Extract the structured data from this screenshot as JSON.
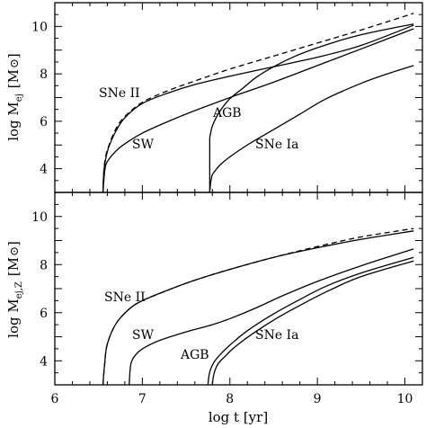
{
  "chart_data": [
    {
      "type": "line",
      "panel": "top",
      "xlabel": "",
      "ylabel": "log M_ej [M_⊙]",
      "xlim": [
        6.0,
        10.2
      ],
      "ylim": [
        3.0,
        11.0
      ],
      "xticks": [
        6,
        7,
        8,
        9,
        10
      ],
      "yticks": [
        4,
        6,
        8,
        10
      ],
      "tick_labels_y": [
        "4",
        "6",
        "8",
        "10"
      ],
      "series": [
        {
          "key": "total",
          "style": "dashed",
          "x": [
            6.55,
            6.56,
            6.58,
            6.62,
            6.7,
            6.8,
            7.0,
            7.3,
            7.6,
            8.0,
            8.5,
            9.0,
            9.5,
            10.1
          ],
          "y": [
            3.0,
            3.9,
            4.5,
            5.0,
            5.7,
            6.2,
            6.8,
            7.3,
            7.7,
            8.2,
            8.75,
            9.3,
            9.85,
            10.55
          ]
        },
        {
          "key": "sne_ii",
          "label": "SNe II",
          "x": [
            6.55,
            6.56,
            6.58,
            6.62,
            6.7,
            6.8,
            7.0,
            7.3,
            7.6,
            8.0,
            8.5,
            9.0,
            9.5,
            10.1
          ],
          "y": [
            3.0,
            3.85,
            4.4,
            4.95,
            5.6,
            6.15,
            6.75,
            7.2,
            7.55,
            7.9,
            8.3,
            8.7,
            9.2,
            10.05
          ]
        },
        {
          "key": "sw",
          "label": "SW",
          "x": [
            6.55,
            6.57,
            6.6,
            6.7,
            6.8,
            7.0,
            7.3,
            7.6,
            8.0,
            8.5,
            9.0,
            9.5,
            10.1
          ],
          "y": [
            3.0,
            3.9,
            4.3,
            4.75,
            5.05,
            5.5,
            6.0,
            6.45,
            7.0,
            7.65,
            8.35,
            9.05,
            9.9
          ]
        },
        {
          "key": "agb",
          "label": "AGB",
          "x": [
            7.77,
            7.78,
            7.8,
            7.85,
            7.9,
            8.0,
            8.15,
            8.3,
            8.5,
            8.75,
            9.0,
            9.25,
            9.5,
            9.75,
            10.1
          ],
          "y": [
            5.3,
            5.5,
            5.8,
            6.2,
            6.5,
            6.95,
            7.4,
            7.85,
            8.3,
            8.75,
            9.1,
            9.4,
            9.65,
            9.85,
            10.1
          ]
        },
        {
          "key": "sne_ia",
          "label": "SNe Ia",
          "x": [
            7.77,
            7.78,
            7.79,
            7.8,
            7.85,
            7.9,
            8.0,
            8.2,
            8.5,
            8.8,
            9.1,
            9.5,
            9.8,
            10.1
          ],
          "y": [
            3.0,
            3.4,
            3.6,
            3.75,
            4.0,
            4.2,
            4.5,
            5.0,
            5.65,
            6.3,
            6.95,
            7.6,
            8.0,
            8.35
          ]
        },
        {
          "key": "agb_drop",
          "style": "solid",
          "x": [
            7.77,
            7.77
          ],
          "y": [
            3.0,
            5.3
          ]
        }
      ]
    },
    {
      "type": "line",
      "panel": "bottom",
      "xlabel": "log t [yr]",
      "ylabel": "log M_ej,Z [M_⊙]",
      "xlim": [
        6.0,
        10.2
      ],
      "ylim": [
        3.0,
        11.0
      ],
      "xticks": [
        6,
        7,
        8,
        9,
        10
      ],
      "yticks": [
        4,
        6,
        8,
        10
      ],
      "tick_labels_x": [
        "6",
        "7",
        "8",
        "9",
        "10"
      ],
      "tick_labels_y": [
        "4",
        "6",
        "8",
        "10"
      ],
      "series": [
        {
          "key": "total",
          "style": "dashed",
          "x": [
            6.55,
            6.57,
            6.6,
            6.7,
            6.85,
            7.0,
            7.3,
            7.6,
            8.0,
            8.5,
            9.0,
            9.5,
            10.1
          ],
          "y": [
            3.0,
            3.9,
            4.7,
            5.55,
            6.15,
            6.5,
            6.95,
            7.35,
            7.8,
            8.3,
            8.75,
            9.15,
            9.5
          ]
        },
        {
          "key": "sne_ii",
          "label": "SNe II",
          "x": [
            6.55,
            6.57,
            6.6,
            6.7,
            6.85,
            7.0,
            7.3,
            7.6,
            8.0,
            8.5,
            9.0,
            9.5,
            10.1
          ],
          "y": [
            3.0,
            3.9,
            4.7,
            5.55,
            6.15,
            6.5,
            6.95,
            7.35,
            7.8,
            8.3,
            8.7,
            9.05,
            9.4
          ]
        },
        {
          "key": "sw",
          "label": "SW",
          "x": [
            6.85,
            6.86,
            6.88,
            6.95,
            7.05,
            7.2,
            7.5,
            7.8,
            8.0,
            8.3,
            8.6,
            9.0,
            9.5,
            10.1
          ],
          "y": [
            3.0,
            3.6,
            4.0,
            4.35,
            4.6,
            4.85,
            5.2,
            5.5,
            5.75,
            6.2,
            6.7,
            7.3,
            7.95,
            8.65
          ]
        },
        {
          "key": "agb",
          "label": "AGB",
          "x": [
            7.75,
            7.76,
            7.78,
            7.82,
            7.9,
            8.0,
            8.2,
            8.5,
            8.8,
            9.1,
            9.5,
            10.1
          ],
          "y": [
            3.0,
            3.35,
            3.65,
            3.95,
            4.3,
            4.65,
            5.25,
            5.95,
            6.55,
            7.1,
            7.65,
            8.3
          ]
        },
        {
          "key": "sne_ia",
          "label": "SNe Ia",
          "x": [
            7.8,
            7.81,
            7.83,
            7.87,
            7.95,
            8.05,
            8.25,
            8.55,
            8.85,
            9.15,
            9.5,
            10.1
          ],
          "y": [
            3.0,
            3.3,
            3.6,
            3.9,
            4.2,
            4.55,
            5.1,
            5.8,
            6.4,
            6.95,
            7.5,
            8.15
          ]
        }
      ]
    }
  ],
  "labels": {
    "top": {
      "ylabel_main": "log M",
      "ylabel_sub": "ej",
      "ylabel_unit": "[M",
      "ylabel_close": "]",
      "sne_ii": "SNe II",
      "sw": "SW",
      "agb": "AGB",
      "sne_ia": "SNe Ia"
    },
    "bottom": {
      "ylabel_main": "log M",
      "ylabel_sub": "ej,Z",
      "ylabel_unit": "[M",
      "ylabel_close": "]",
      "sne_ii": "SNe II",
      "sw": "SW",
      "agb": "AGB",
      "sne_ia": "SNe Ia",
      "xlabel": "log t [yr]"
    }
  }
}
